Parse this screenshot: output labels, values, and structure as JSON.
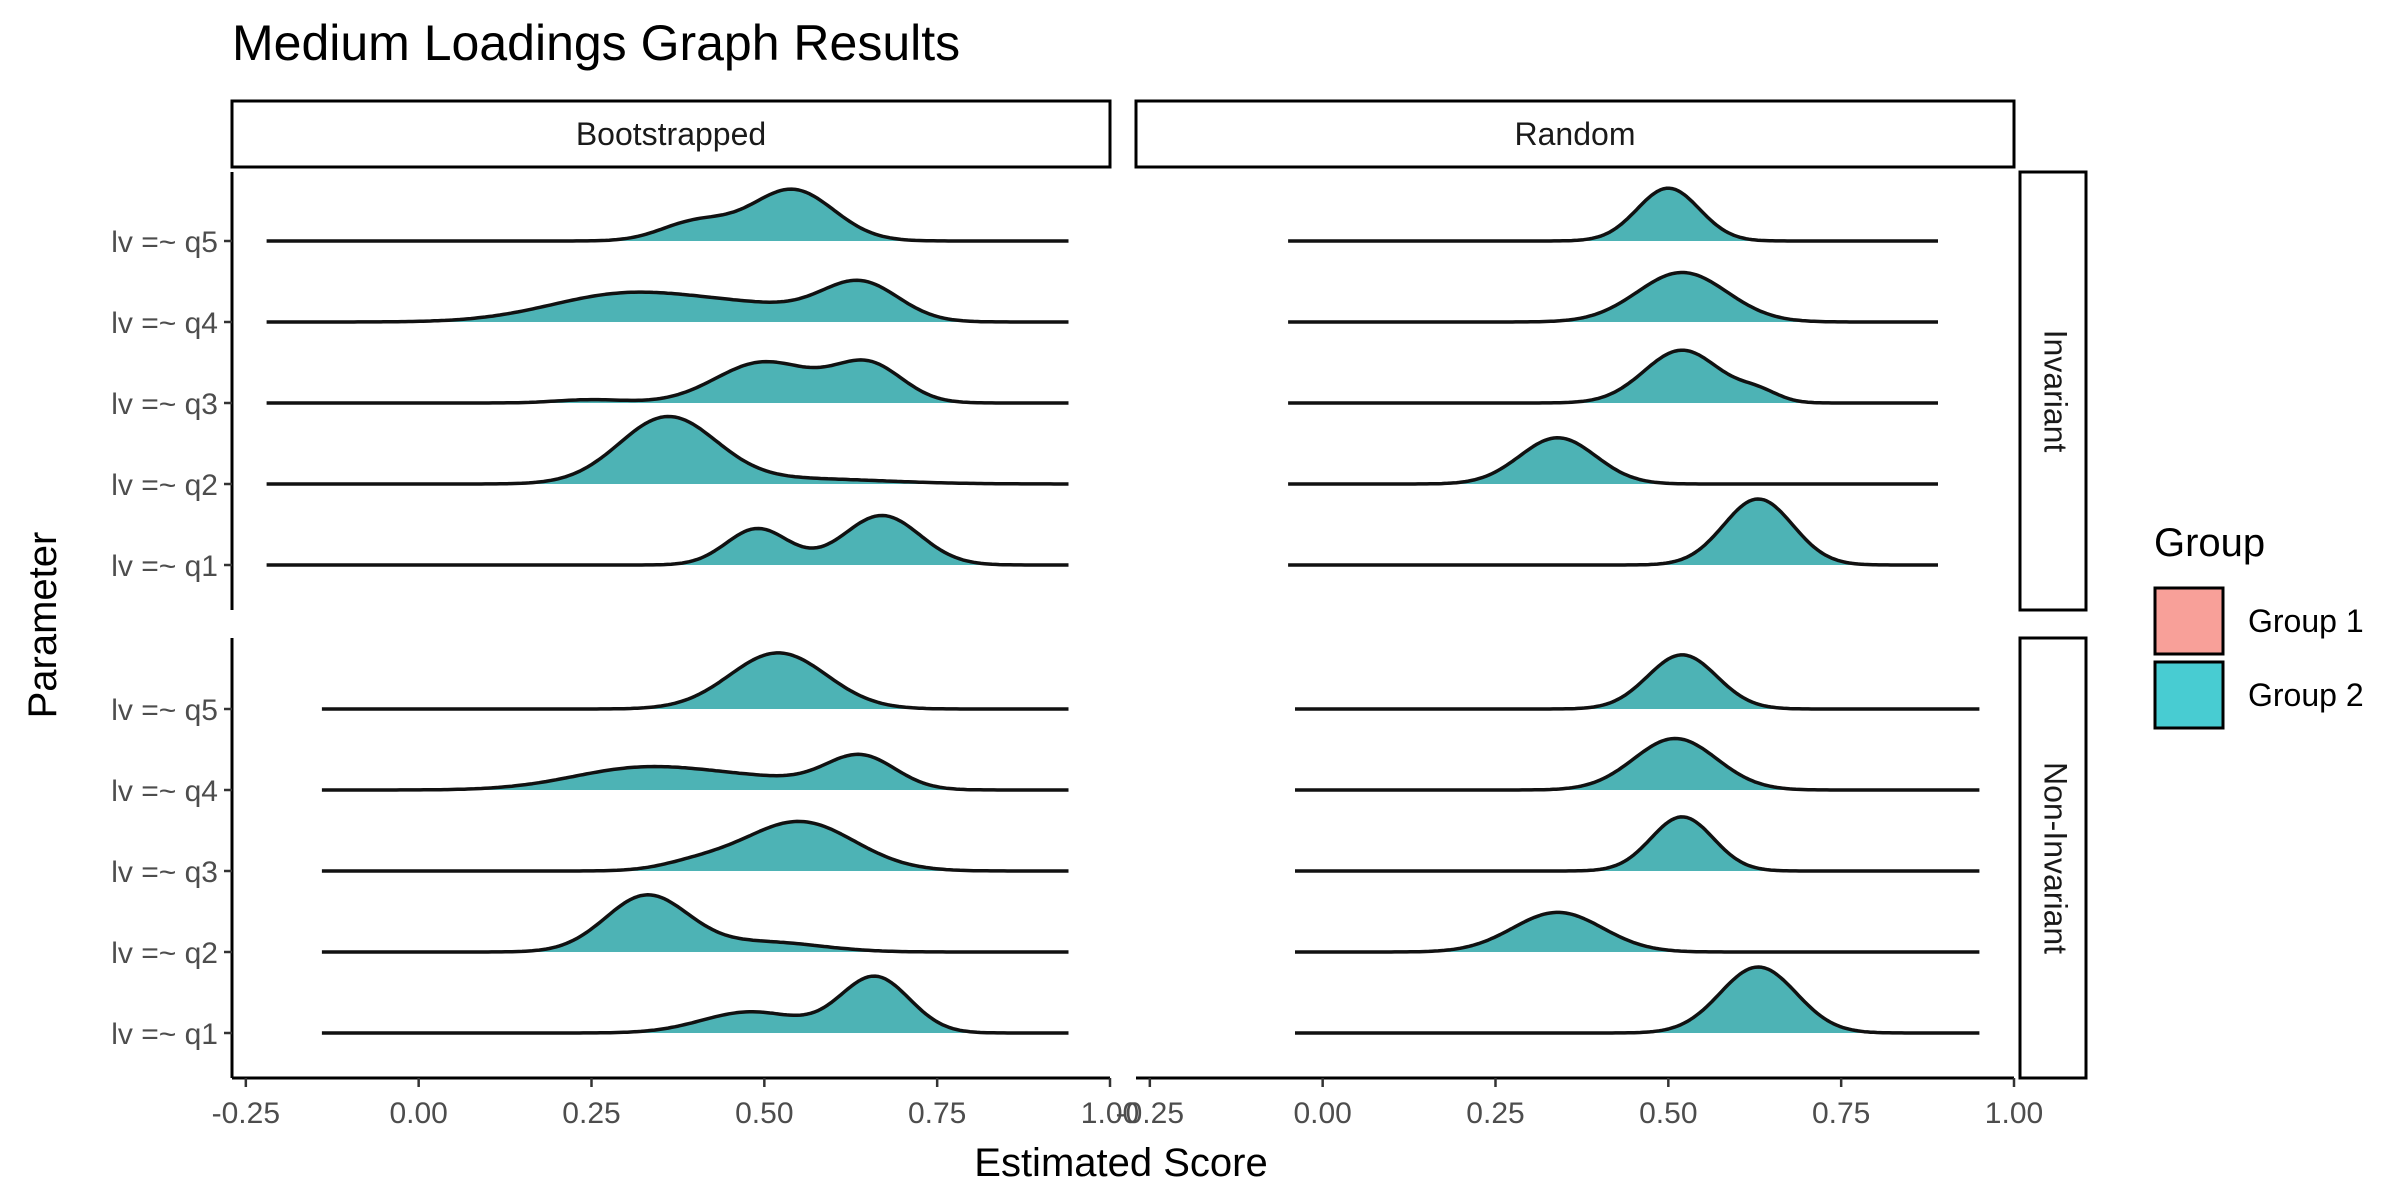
{
  "chart_data": {
    "type": "ridgeline",
    "title": "Medium Loadings Graph Results",
    "xlabel": "Estimated Score",
    "ylabel": "Parameter",
    "xlim": [
      -0.27,
      1.0
    ],
    "x_ticks": [
      -0.25,
      0.0,
      0.25,
      0.5,
      0.75,
      1.0
    ],
    "x_tick_labels": [
      "-0.25",
      "0.00",
      "0.25",
      "0.50",
      "0.75",
      "1.00"
    ],
    "column_facets": [
      "Bootstrapped",
      "Random"
    ],
    "row_facets": [
      "Invariant",
      "Non-Invariant"
    ],
    "categories": [
      "lv =~ q1",
      "lv =~ q2",
      "lv =~ q3",
      "lv =~ q4",
      "lv =~ q5"
    ],
    "legend": {
      "title": "Group",
      "placement": "right",
      "items": [
        {
          "name": "Group 1",
          "color": "#F8A099"
        },
        {
          "name": "Group 2",
          "color": "#48CCD2"
        }
      ]
    },
    "colors": {
      "overlap_fill": "#4DB3B5",
      "outline": "#111111"
    },
    "panels": [
      {
        "column": "Bootstrapped",
        "row": "Invariant",
        "range": [
          -0.22,
          0.94
        ],
        "ridges": [
          {
            "category": "lv =~ q1",
            "peaks": [
              [
                0.49,
                0.045,
                0.55
              ],
              [
                0.67,
                0.055,
                0.75
              ]
            ]
          },
          {
            "category": "lv =~ q2",
            "peaks": [
              [
                0.36,
                0.07,
                1.0
              ],
              [
                0.55,
                0.12,
                0.08
              ]
            ]
          },
          {
            "category": "lv =~ q3",
            "peaks": [
              [
                0.5,
                0.07,
                0.62
              ],
              [
                0.65,
                0.05,
                0.58
              ],
              [
                0.25,
                0.05,
                0.05
              ]
            ]
          },
          {
            "category": "lv =~ q4",
            "peaks": [
              [
                0.3,
                0.11,
                0.42
              ],
              [
                0.64,
                0.055,
                0.55
              ],
              [
                0.5,
                0.1,
                0.2
              ]
            ]
          },
          {
            "category": "lv =~ q5",
            "peaks": [
              [
                0.54,
                0.06,
                0.78
              ],
              [
                0.4,
                0.05,
                0.28
              ]
            ]
          }
        ]
      },
      {
        "column": "Random",
        "row": "Invariant",
        "range": [
          -0.05,
          0.89
        ],
        "ridges": [
          {
            "category": "lv =~ q1",
            "peaks": [
              [
                0.63,
                0.05,
                1.0
              ]
            ]
          },
          {
            "category": "lv =~ q2",
            "peaks": [
              [
                0.34,
                0.055,
                0.7
              ]
            ]
          },
          {
            "category": "lv =~ q3",
            "peaks": [
              [
                0.52,
                0.055,
                0.8
              ],
              [
                0.63,
                0.03,
                0.15
              ]
            ]
          },
          {
            "category": "lv =~ q4",
            "peaks": [
              [
                0.52,
                0.065,
                0.75
              ]
            ]
          },
          {
            "category": "lv =~ q5",
            "peaks": [
              [
                0.5,
                0.045,
                0.8
              ]
            ]
          }
        ]
      },
      {
        "column": "Bootstrapped",
        "row": "Non-Invariant",
        "range": [
          -0.14,
          0.94
        ],
        "ridges": [
          {
            "category": "lv =~ q1",
            "peaks": [
              [
                0.66,
                0.05,
                0.85
              ],
              [
                0.48,
                0.07,
                0.32
              ]
            ]
          },
          {
            "category": "lv =~ q2",
            "peaks": [
              [
                0.33,
                0.06,
                0.85
              ],
              [
                0.5,
                0.08,
                0.15
              ]
            ]
          },
          {
            "category": "lv =~ q3",
            "peaks": [
              [
                0.55,
                0.08,
                0.75
              ],
              [
                0.4,
                0.05,
                0.1
              ]
            ]
          },
          {
            "category": "lv =~ q4",
            "peaks": [
              [
                0.32,
                0.1,
                0.32
              ],
              [
                0.64,
                0.05,
                0.48
              ],
              [
                0.5,
                0.1,
                0.15
              ]
            ]
          },
          {
            "category": "lv =~ q5",
            "peaks": [
              [
                0.52,
                0.07,
                0.85
              ]
            ]
          }
        ]
      },
      {
        "column": "Random",
        "row": "Non-Invariant",
        "range": [
          -0.04,
          0.95
        ],
        "ridges": [
          {
            "category": "lv =~ q1",
            "peaks": [
              [
                0.63,
                0.055,
                1.0
              ]
            ]
          },
          {
            "category": "lv =~ q2",
            "peaks": [
              [
                0.34,
                0.065,
                0.6
              ]
            ]
          },
          {
            "category": "lv =~ q3",
            "peaks": [
              [
                0.52,
                0.045,
                0.82
              ]
            ]
          },
          {
            "category": "lv =~ q4",
            "peaks": [
              [
                0.51,
                0.06,
                0.78
              ]
            ]
          },
          {
            "category": "lv =~ q5",
            "peaks": [
              [
                0.52,
                0.05,
                0.82
              ]
            ]
          }
        ]
      }
    ]
  }
}
